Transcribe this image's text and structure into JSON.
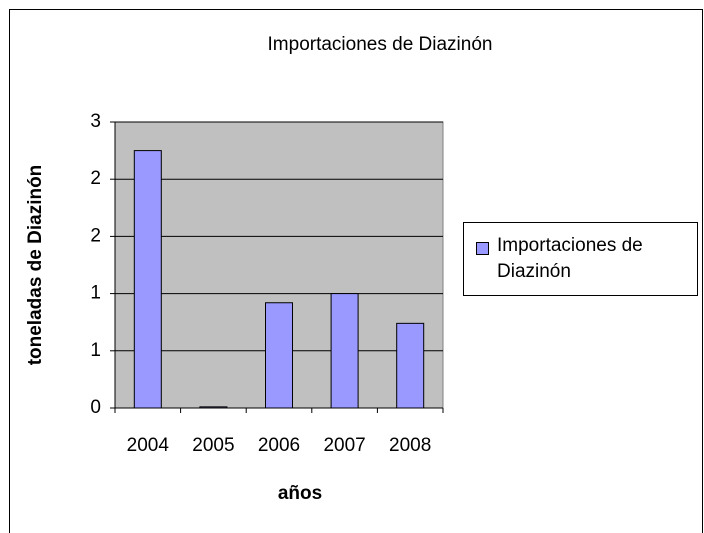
{
  "chart_data": {
    "type": "bar",
    "title": "Importaciones de Diazinón",
    "x_label": "años",
    "y_label": "toneladas de Diazinón",
    "categories": [
      "2004",
      "2005",
      "2006",
      "2007",
      "2008"
    ],
    "series": [
      {
        "name": "Importaciones de Diazinón",
        "color": "#9999ff",
        "values": [
          2.25,
          0.01,
          0.92,
          1.0,
          0.74
        ]
      }
    ],
    "ylim": [
      0,
      2.5
    ],
    "yticks": [
      0,
      {
        "value": 0.5,
        "label": "1"
      },
      1,
      {
        "value": 1.5,
        "label": "2"
      },
      2,
      {
        "value": 2.5,
        "label": "3"
      }
    ],
    "grid": true,
    "legend": "right",
    "plot_background": "#c0c0c0"
  }
}
